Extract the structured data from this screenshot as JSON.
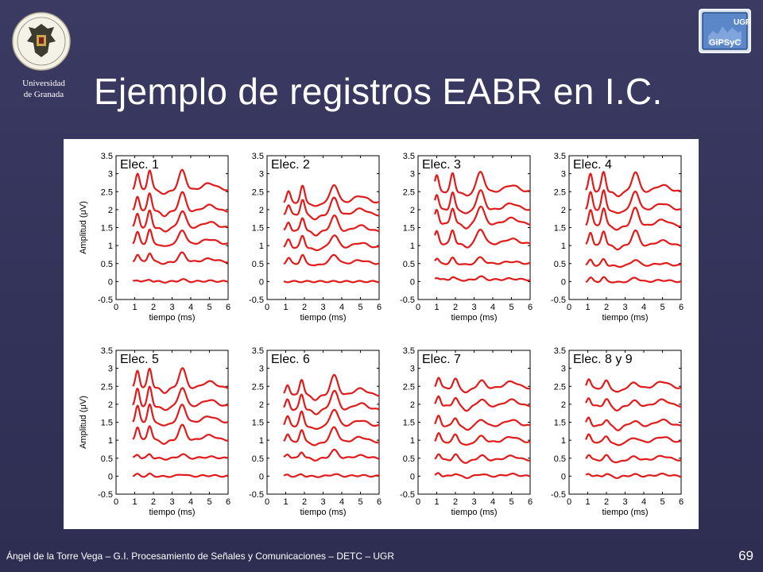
{
  "header": {
    "university_line1": "Universidad",
    "university_line2": "de Granada",
    "title": "Ejemplo de registros EABR en I.C.",
    "lab_logo_text_top": "UGR",
    "lab_logo_text_bottom": "GiPSyC"
  },
  "footer": {
    "text": "Ángel de la Torre Vega – G.I. Procesamiento de Señales y Comunicaciones – DETC – UGR",
    "page_number": "69"
  },
  "colors": {
    "background": "#34345a",
    "trace": "#e11b1b",
    "axis": "#000000"
  },
  "chart_data": {
    "type": "line",
    "grid": false,
    "xlabel": "tiempo (ms)",
    "ylabel": "Amplitud (μV)",
    "xlim": [
      0,
      6
    ],
    "ylim": [
      -0.5,
      3.5
    ],
    "xticks": [
      "0",
      "1",
      "2",
      "3",
      "4",
      "5",
      "6"
    ],
    "yticks": [
      "-0.5",
      "0",
      "0.5",
      "1",
      "1.5",
      "2",
      "2.5",
      "3",
      "3.5"
    ],
    "x_start": 0.9,
    "panels": [
      {
        "label": "Elec. 1",
        "ylabel_shown": true,
        "baselines": [
          0,
          0.55,
          1.05,
          1.5,
          1.95,
          2.55
        ],
        "peaks": [
          [
            1.15,
            0.45,
            0.15
          ],
          [
            1.8,
            0.55,
            0.16
          ],
          [
            3.55,
            0.55,
            0.26
          ]
        ],
        "gains": [
          0.1,
          0.45,
          0.7,
          0.85,
          0.95,
          1.0
        ]
      },
      {
        "label": "Elec. 2",
        "ylabel_shown": false,
        "baselines": [
          0,
          0.5,
          0.95,
          1.4,
          1.85,
          2.2
        ],
        "peaks": [
          [
            1.15,
            0.3,
            0.15
          ],
          [
            1.9,
            0.45,
            0.16
          ],
          [
            3.6,
            0.5,
            0.28
          ]
        ],
        "gains": [
          0.0,
          0.5,
          0.7,
          0.85,
          0.95,
          1.0
        ]
      },
      {
        "label": "Elec. 3",
        "ylabel_shown": false,
        "baselines": [
          0.05,
          0.5,
          1.05,
          1.6,
          2.0,
          2.5
        ],
        "peaks": [
          [
            1.0,
            0.45,
            0.15
          ],
          [
            1.85,
            0.5,
            0.16
          ],
          [
            3.35,
            0.55,
            0.28
          ]
        ],
        "gains": [
          0.15,
          0.3,
          0.75,
          0.9,
          0.95,
          1.0
        ]
      },
      {
        "label": "Elec. 4",
        "ylabel_shown": false,
        "baselines": [
          0,
          0.45,
          1.0,
          1.55,
          2.0,
          2.5
        ],
        "peaks": [
          [
            1.15,
            0.5,
            0.15
          ],
          [
            1.85,
            0.55,
            0.16
          ],
          [
            3.55,
            0.55,
            0.26
          ]
        ],
        "gains": [
          0.2,
          0.3,
          0.75,
          0.9,
          0.95,
          1.0
        ]
      },
      {
        "label": "Elec. 5",
        "ylabel_shown": true,
        "baselines": [
          0,
          0.5,
          1.0,
          1.5,
          1.95,
          2.45
        ],
        "peaks": [
          [
            1.15,
            0.5,
            0.15
          ],
          [
            1.8,
            0.55,
            0.16
          ],
          [
            3.55,
            0.55,
            0.26
          ]
        ],
        "gains": [
          0.1,
          0.2,
          0.75,
          0.9,
          0.95,
          1.0
        ]
      },
      {
        "label": "Elec. 6",
        "ylabel_shown": false,
        "baselines": [
          0,
          0.5,
          0.95,
          1.4,
          1.85,
          2.25
        ],
        "peaks": [
          [
            1.1,
            0.3,
            0.15
          ],
          [
            1.85,
            0.45,
            0.16
          ],
          [
            3.6,
            0.55,
            0.28
          ]
        ],
        "gains": [
          0.1,
          0.4,
          0.75,
          0.85,
          0.95,
          1.0
        ]
      },
      {
        "label": "Elec. 7",
        "ylabel_shown": false,
        "baselines": [
          0,
          0.45,
          0.95,
          1.4,
          1.95,
          2.45
        ],
        "peaks": [
          [
            1.1,
            0.3,
            0.15
          ],
          [
            2.0,
            0.25,
            0.18
          ],
          [
            3.4,
            0.2,
            0.28
          ]
        ],
        "gains": [
          0.3,
          0.6,
          0.8,
          0.9,
          0.95,
          1.0
        ]
      },
      {
        "label": "Elec. 8 y 9",
        "ylabel_shown": false,
        "baselines": [
          0,
          0.45,
          0.95,
          1.4,
          1.95,
          2.45
        ],
        "peaks": [
          [
            1.05,
            0.25,
            0.15
          ],
          [
            2.0,
            0.2,
            0.18
          ],
          [
            3.5,
            0.15,
            0.3
          ]
        ],
        "gains": [
          0.3,
          0.6,
          0.8,
          0.9,
          0.95,
          1.0
        ]
      }
    ]
  }
}
